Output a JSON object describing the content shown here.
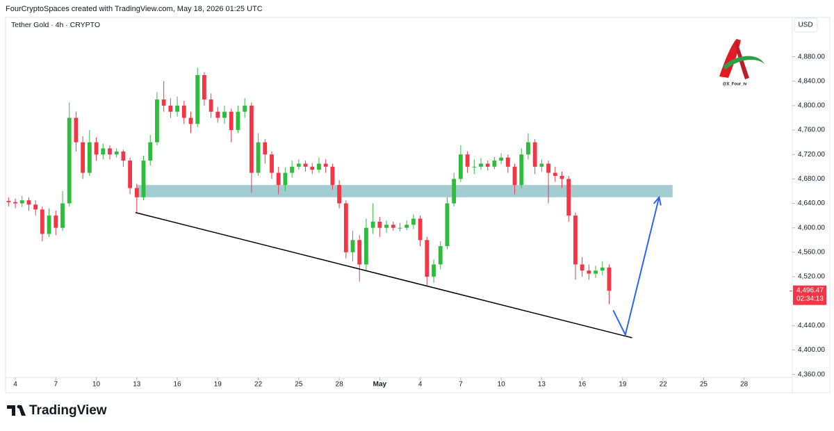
{
  "header": "FourCryptoSpaces created with TradingView.com, May 18, 2026 01:25 UTC",
  "footer": "TradingView",
  "watermark": "@X_Four_iv",
  "chart_data": {
    "type": "candlestick",
    "title": "Tether Gold · 4h · CRYPTO",
    "currency": "USD",
    "up_color": "#2ebd3a",
    "down_color": "#f23645",
    "xlim": [
      -0.62,
      57.57
    ],
    "ylim": [
      4330,
      4941
    ],
    "xticks": [
      {
        "value": 0,
        "label": "4"
      },
      {
        "value": 3,
        "label": "7"
      },
      {
        "value": 6,
        "label": "10"
      },
      {
        "value": 9,
        "label": "13"
      },
      {
        "value": 12,
        "label": "16"
      },
      {
        "value": 15,
        "label": "19"
      },
      {
        "value": 18,
        "label": "22"
      },
      {
        "value": 21,
        "label": "25"
      },
      {
        "value": 24,
        "label": "28"
      },
      {
        "value": 27,
        "label": "May"
      },
      {
        "value": 30,
        "label": "4"
      },
      {
        "value": 33,
        "label": "7"
      },
      {
        "value": 36,
        "label": "10"
      },
      {
        "value": 39,
        "label": "13"
      },
      {
        "value": 42,
        "label": "16"
      },
      {
        "value": 45,
        "label": "19"
      },
      {
        "value": 48,
        "label": "22"
      },
      {
        "value": 51,
        "label": "25"
      },
      {
        "value": 54,
        "label": "28"
      }
    ],
    "yticks": [
      {
        "value": 4360,
        "label": "4,360.00"
      },
      {
        "value": 4400,
        "label": "4,400.00"
      },
      {
        "value": 4440,
        "label": "4,440.00"
      },
      {
        "value": 4480,
        "label": "4,480.00"
      },
      {
        "value": 4520,
        "label": "4,520.00"
      },
      {
        "value": 4560,
        "label": "4,560.00"
      },
      {
        "value": 4600,
        "label": "4,600.00"
      },
      {
        "value": 4640,
        "label": "4,640.00"
      },
      {
        "value": 4680,
        "label": "4,680.00"
      },
      {
        "value": 4720,
        "label": "4,720.00"
      },
      {
        "value": 4760,
        "label": "4,760.00"
      },
      {
        "value": 4800,
        "label": "4,800.00"
      },
      {
        "value": 4840,
        "label": "4,840.00"
      },
      {
        "value": 4880,
        "label": "4,880.00"
      }
    ],
    "x": [
      -0.5,
      0,
      0.5,
      1,
      1.5,
      2,
      2.5,
      3,
      3.5,
      4,
      4.5,
      5,
      5.5,
      6,
      6.5,
      7,
      7.5,
      8,
      8.5,
      9,
      9.5,
      10,
      10.5,
      11,
      11.5,
      12,
      12.5,
      13,
      13.5,
      14,
      14.5,
      15,
      15.5,
      16,
      16.5,
      17,
      17.5,
      18,
      18.5,
      19,
      19.5,
      20,
      20.5,
      21,
      21.5,
      22,
      22.5,
      23,
      23.5,
      24,
      24.5,
      25,
      25.5,
      26,
      26.5,
      27,
      27.5,
      28,
      28.5,
      29,
      29.5,
      30,
      30.5,
      31,
      31.5,
      32,
      32.5,
      33,
      33.5,
      34,
      34.5,
      35,
      35.5,
      36,
      36.5,
      37,
      37.5,
      38,
      38.5,
      39,
      39.5,
      40,
      40.5,
      41,
      41.5,
      42,
      42.5,
      43,
      43.5,
      44
    ],
    "open": [
      4644,
      4642,
      4640,
      4645,
      4638,
      4630,
      4590,
      4620,
      4600,
      4640,
      4780,
      4740,
      4690,
      4740,
      4720,
      4730,
      4720,
      4725,
      4710,
      4665,
      4650,
      4710,
      4740,
      4810,
      4800,
      4790,
      4800,
      4780,
      4770,
      4850,
      4810,
      4790,
      4780,
      4790,
      4760,
      4790,
      4800,
      4690,
      4740,
      4720,
      4690,
      4670,
      4690,
      4700,
      4705,
      4700,
      4695,
      4705,
      4700,
      4670,
      4640,
      4560,
      4580,
      4540,
      4600,
      4610,
      4600,
      4605,
      4600,
      4600,
      4605,
      4615,
      4580,
      4520,
      4540,
      4570,
      4640,
      4680,
      4720,
      4700,
      4700,
      4705,
      4700,
      4710,
      4715,
      4700,
      4670,
      4720,
      4740,
      4700,
      4705,
      4690,
      4685,
      4680,
      4620,
      4540,
      4530,
      4525,
      4530,
      4535
    ],
    "high": [
      4650,
      4648,
      4652,
      4650,
      4645,
      4635,
      4632,
      4628,
      4660,
      4805,
      4790,
      4750,
      4760,
      4748,
      4738,
      4735,
      4730,
      4728,
      4715,
      4672,
      4718,
      4752,
      4822,
      4840,
      4812,
      4815,
      4808,
      4790,
      4862,
      4855,
      4820,
      4798,
      4800,
      4795,
      4800,
      4812,
      4805,
      4755,
      4745,
      4725,
      4700,
      4698,
      4710,
      4712,
      4710,
      4706,
      4715,
      4712,
      4705,
      4678,
      4645,
      4595,
      4588,
      4615,
      4640,
      4618,
      4612,
      4610,
      4608,
      4612,
      4622,
      4620,
      4585,
      4548,
      4578,
      4650,
      4690,
      4735,
      4725,
      4712,
      4714,
      4710,
      4716,
      4722,
      4720,
      4705,
      4730,
      4755,
      4745,
      4712,
      4710,
      4700,
      4692,
      4685,
      4625,
      4552,
      4540,
      4538,
      4545,
      4540
    ],
    "low": [
      4635,
      4632,
      4634,
      4628,
      4620,
      4578,
      4585,
      4588,
      4595,
      4635,
      4725,
      4680,
      4685,
      4710,
      4712,
      4712,
      4715,
      4700,
      4655,
      4625,
      4645,
      4702,
      4735,
      4790,
      4780,
      4782,
      4770,
      4755,
      4765,
      4800,
      4780,
      4772,
      4770,
      4740,
      4755,
      4780,
      4658,
      4685,
      4705,
      4680,
      4655,
      4660,
      4682,
      4695,
      4692,
      4688,
      4690,
      4690,
      4662,
      4632,
      4550,
      4545,
      4512,
      4530,
      4590,
      4585,
      4592,
      4595,
      4594,
      4596,
      4598,
      4570,
      4505,
      4510,
      4532,
      4565,
      4635,
      4675,
      4690,
      4688,
      4695,
      4694,
      4696,
      4704,
      4690,
      4655,
      4665,
      4712,
      4688,
      4692,
      4640,
      4675,
      4665,
      4610,
      4515,
      4520,
      4515,
      4518,
      4522,
      4475
    ],
    "close": [
      4642,
      4640,
      4645,
      4638,
      4630,
      4590,
      4620,
      4600,
      4640,
      4780,
      4740,
      4690,
      4740,
      4720,
      4730,
      4720,
      4725,
      4710,
      4665,
      4650,
      4710,
      4740,
      4810,
      4800,
      4790,
      4800,
      4780,
      4770,
      4850,
      4810,
      4790,
      4780,
      4790,
      4760,
      4790,
      4800,
      4690,
      4740,
      4720,
      4690,
      4670,
      4690,
      4700,
      4705,
      4700,
      4695,
      4705,
      4700,
      4670,
      4640,
      4560,
      4580,
      4540,
      4600,
      4610,
      4600,
      4605,
      4600,
      4600,
      4605,
      4615,
      4580,
      4520,
      4540,
      4570,
      4640,
      4680,
      4720,
      4700,
      4700,
      4705,
      4700,
      4710,
      4715,
      4700,
      4670,
      4720,
      4740,
      4700,
      4705,
      4690,
      4685,
      4680,
      4620,
      4540,
      4530,
      4525,
      4530,
      4535,
      4497
    ],
    "last_price": {
      "value": 4496.47,
      "label": "4,496.47",
      "countdown": "02:34:13"
    },
    "zone": {
      "color": "#a3cbd2",
      "x": [
        9,
        48.7
      ],
      "y": [
        4650,
        4670
      ]
    },
    "trendline": {
      "color": "#000000",
      "x": [
        8.9,
        45.7
      ],
      "y": [
        4625,
        4420
      ]
    },
    "arrow": {
      "color": "#2962ff",
      "x": [
        44.3,
        45.2,
        47.7
      ],
      "y": [
        4465,
        4425,
        4650
      ]
    }
  }
}
